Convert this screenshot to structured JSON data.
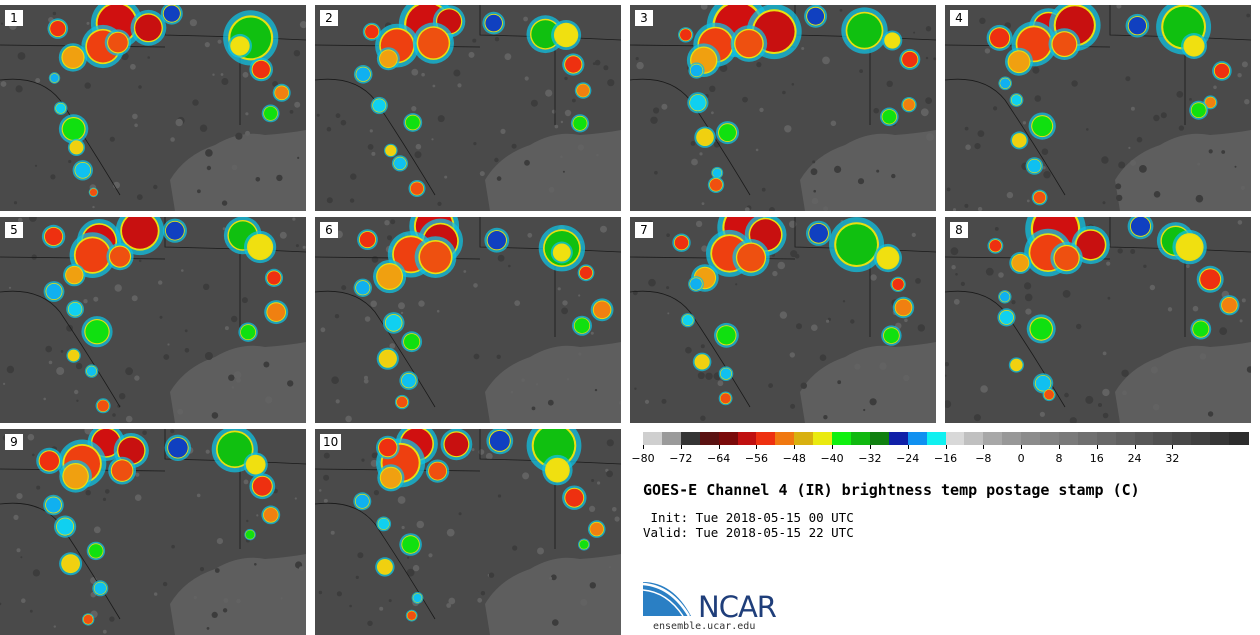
{
  "panels": [
    {
      "label": "1"
    },
    {
      "label": "2"
    },
    {
      "label": "3"
    },
    {
      "label": "4"
    },
    {
      "label": "5"
    },
    {
      "label": "6"
    },
    {
      "label": "7"
    },
    {
      "label": "8"
    },
    {
      "label": "9"
    },
    {
      "label": "10"
    }
  ],
  "colorbar": {
    "colors": [
      "#cfcfcf",
      "#9a9a9a",
      "#343434",
      "#5a1212",
      "#7a0a0a",
      "#c01010",
      "#ee3010",
      "#f07810",
      "#d8b010",
      "#eaea10",
      "#10f010",
      "#10b810",
      "#108010",
      "#1020a8",
      "#1090f0",
      "#10f0f0",
      "#d8d8d8",
      "#c0c0c0",
      "#a8a8a8",
      "#989898",
      "#8c8c8c",
      "#828282",
      "#7a7a7a",
      "#707070",
      "#686868",
      "#606060",
      "#585858",
      "#505050",
      "#484848",
      "#404040",
      "#363636",
      "#2c2c2c"
    ],
    "ticks": [
      "−80",
      "−72",
      "−64",
      "−56",
      "−48",
      "−40",
      "−32",
      "−24",
      "−16",
      "−8",
      "0",
      "8",
      "16",
      "24",
      "32"
    ]
  },
  "title": "GOES-E Channel 4 (IR) brightness temp postage stamp (C)",
  "init": " Init: Tue 2018-05-15 00 UTC",
  "valid": "Valid: Tue 2018-05-15 22 UTC",
  "logo": {
    "text": "NCAR",
    "url": "ensemble.ucar.edu"
  }
}
